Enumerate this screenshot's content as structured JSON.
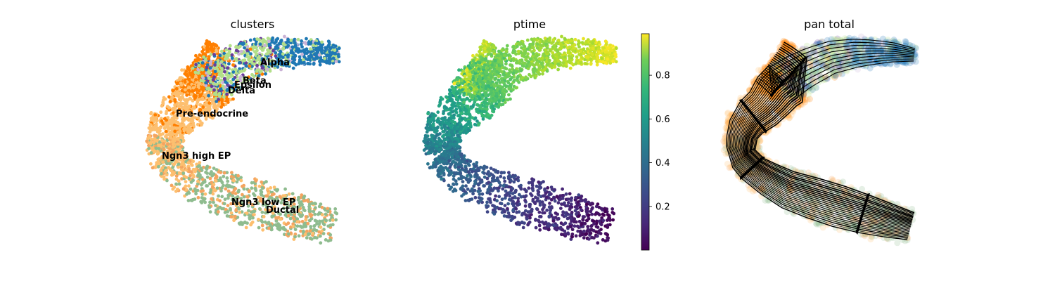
{
  "chart_data": [
    {
      "type": "scatter",
      "title": "clusters",
      "colors": {
        "Ductal": "#8fbc8f",
        "Ngn3 low EP": "#f4a460",
        "Ngn3 high EP": "#fdbf6f",
        "Pre-endocrine": "#ff7f00",
        "Beta": "#b2df8a",
        "Alpha": "#1f78b4",
        "Delta": "#6a3d9a",
        "Epsilon": "#cab2d6"
      },
      "labels": [
        "Alpha",
        "Beta",
        "Epsilon",
        "Delta",
        "Pre-endocrine",
        "Ngn3 high EP",
        "Ngn3 low EP",
        "Ductal"
      ]
    },
    {
      "type": "scatter",
      "title": "ptime",
      "colorbar": {
        "ticks": [
          "0.2",
          "0.4",
          "0.6",
          "0.8"
        ],
        "tick_values": [
          0.2,
          0.4,
          0.6,
          0.8
        ],
        "range": [
          0.0,
          0.99
        ],
        "colormap": "viridis"
      }
    },
    {
      "type": "scatter",
      "title": "pan total",
      "overlay": "streamlines",
      "stream_color": "#000000"
    }
  ]
}
